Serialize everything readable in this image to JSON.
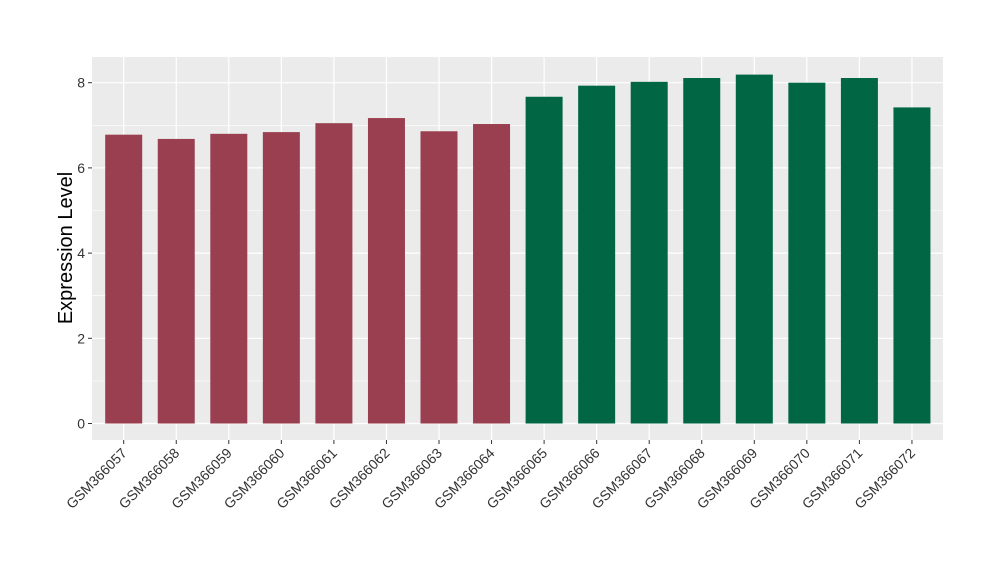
{
  "chart_data": {
    "type": "bar",
    "title": "",
    "xlabel": "",
    "ylabel": "Expression Level",
    "ylim": [
      0,
      8.6
    ],
    "yticks": [
      0,
      2,
      4,
      6,
      8
    ],
    "ytick_labels": [
      "0",
      "2",
      "4",
      "6",
      "8"
    ],
    "grid": true,
    "legend": "none",
    "colors": {
      "group1": "#993F4F",
      "group2": "#006644",
      "panel": "#EBEBEB",
      "grid": "#FFFFFF"
    },
    "categories": [
      "GSM366057",
      "GSM366058",
      "GSM366059",
      "GSM366060",
      "GSM366061",
      "GSM366062",
      "GSM366063",
      "GSM366064",
      "GSM366065",
      "GSM366066",
      "GSM366067",
      "GSM366068",
      "GSM366069",
      "GSM366070",
      "GSM366071",
      "GSM366072"
    ],
    "values": [
      6.78,
      6.68,
      6.8,
      6.84,
      7.05,
      7.17,
      6.86,
      7.03,
      7.67,
      7.93,
      8.02,
      8.11,
      8.19,
      8.0,
      8.11,
      7.42
    ],
    "bar_group": [
      1,
      1,
      1,
      1,
      1,
      1,
      1,
      1,
      2,
      2,
      2,
      2,
      2,
      2,
      2,
      2
    ]
  }
}
